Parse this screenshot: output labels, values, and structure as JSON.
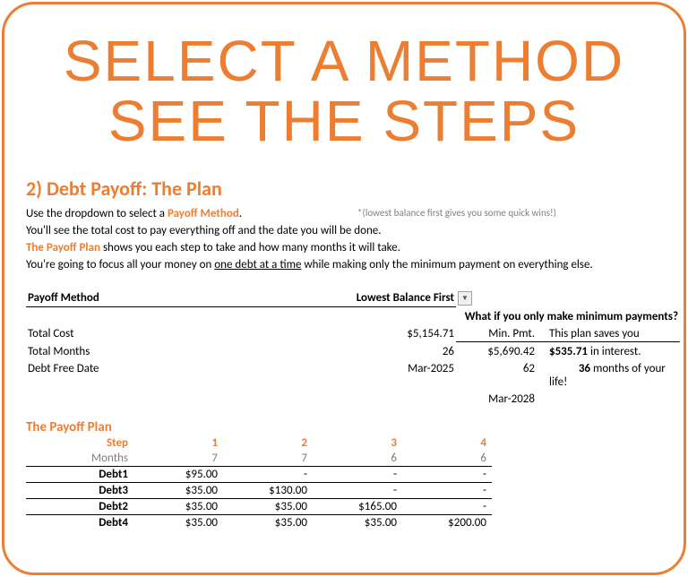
{
  "colors": {
    "accent": "#ed7d31",
    "gray": "#7f7f7f",
    "text": "#000000"
  },
  "hero": {
    "line1": "SELECT A METHOD",
    "line2": "SEE THE STEPS"
  },
  "section": {
    "title": "2) Debt Payoff: The Plan",
    "line1a": "Use the dropdown to select a ",
    "line1b": "Payoff Method",
    "line1c": ".",
    "tip": "*(lowest balance first gives you some quick wins!)",
    "line2": "You'll see the total cost to pay everything off and the date you will be done.",
    "line3a": "The Payoff Plan",
    "line3b": " shows you each step to take and how many months it will take.",
    "line4a": "You're going to focus all your money on ",
    "line4b": "one debt at a time",
    "line4c": " while making only the minimum payment on everything else."
  },
  "summary": {
    "method_label": "Payoff Method",
    "method_value": "Lowest Balance First",
    "alt_header": "What if you only make minimum payments?",
    "rows": {
      "cost": {
        "label": "Total Cost",
        "plan": "$5,154.71",
        "min_label": "Min. Pmt.",
        "min_val": "$5,690.42",
        "save_pre": "This plan saves you",
        "save_val": "$535.71",
        "save_post": " in interest."
      },
      "months": {
        "label": "Total Months",
        "plan": "26",
        "min_val": "62",
        "save_val": "36",
        "save_post": " months of your life!"
      },
      "date": {
        "label": "Debt Free Date",
        "plan": "Mar-2025",
        "min_val": "Mar-2028"
      }
    }
  },
  "plan": {
    "title": "The Payoff Plan",
    "step_label": "Step",
    "steps": [
      "1",
      "2",
      "3",
      "4"
    ],
    "months_label": "Months",
    "months": [
      "7",
      "7",
      "6",
      "6"
    ],
    "debts": [
      {
        "name": "Debt1",
        "vals": [
          "$95.00",
          "-",
          "-",
          "-"
        ]
      },
      {
        "name": "Debt3",
        "vals": [
          "$35.00",
          "$130.00",
          "-",
          "-"
        ]
      },
      {
        "name": "Debt2",
        "vals": [
          "$35.00",
          "$35.00",
          "$165.00",
          "-"
        ]
      },
      {
        "name": "Debt4",
        "vals": [
          "$35.00",
          "$35.00",
          "$35.00",
          "$200.00"
        ]
      }
    ]
  }
}
